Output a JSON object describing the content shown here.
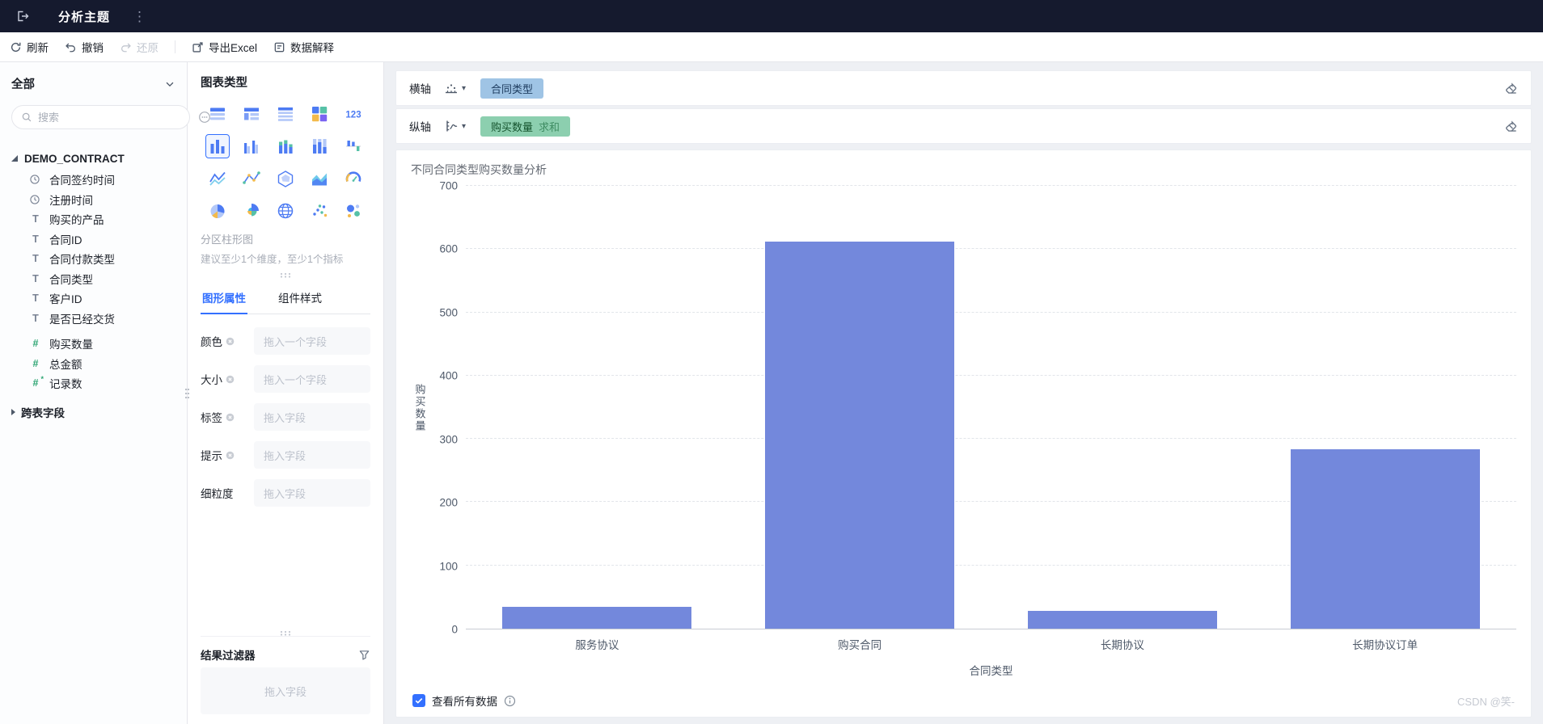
{
  "header": {
    "title": "分析主题"
  },
  "toolbar": {
    "refresh": "刷新",
    "undo": "撤销",
    "redo": "还原",
    "export_excel": "导出Excel",
    "data_explain": "数据解释"
  },
  "sidebar": {
    "filter_all": "全部",
    "search_placeholder": "搜索",
    "tree": {
      "table": "DEMO_CONTRACT",
      "fields": [
        {
          "name": "合同签约时间",
          "type": "date"
        },
        {
          "name": "注册时间",
          "type": "date"
        },
        {
          "name": "购买的产品",
          "type": "text"
        },
        {
          "name": "合同ID",
          "type": "text"
        },
        {
          "name": "合同付款类型",
          "type": "text"
        },
        {
          "name": "合同类型",
          "type": "text"
        },
        {
          "name": "客户ID",
          "type": "text"
        },
        {
          "name": "是否已经交货",
          "type": "text"
        },
        {
          "name": "购买数量",
          "type": "number",
          "group_start": true
        },
        {
          "name": "总金额",
          "type": "number"
        },
        {
          "name": "记录数",
          "type": "calc"
        }
      ],
      "cross_table_label": "跨表字段"
    }
  },
  "panel": {
    "chart_type_title": "图表类型",
    "chart_icons": [
      "group-table",
      "cross-table",
      "detail-table",
      "dashboard-blocks",
      "kpi-card",
      "partition-column",
      "grouped-column",
      "stacked-column",
      "percent-column",
      "bidirectional-bar",
      "line-chart",
      "combo-chart",
      "radar-chart",
      "area-chart",
      "gauge-chart",
      "pie-chart",
      "rose-chart",
      "map-chart",
      "scatter-chart",
      "bubble-chart"
    ],
    "selected_icon_index": 5,
    "selected_chart_name": "分区柱形图",
    "hint": "建议至少1个维度，至少1个指标",
    "tabs": [
      {
        "label": "图形属性",
        "active": true
      },
      {
        "label": "组件样式",
        "active": false
      }
    ],
    "properties": [
      {
        "label": "颜色",
        "placeholder": "拖入一个字段",
        "clearable": true
      },
      {
        "label": "大小",
        "placeholder": "拖入一个字段",
        "clearable": true
      },
      {
        "label": "标签",
        "placeholder": "拖入字段",
        "clearable": true
      },
      {
        "label": "提示",
        "placeholder": "拖入字段",
        "clearable": true
      },
      {
        "label": "细粒度",
        "placeholder": "拖入字段",
        "clearable": false
      }
    ],
    "result_filter": {
      "title": "结果过滤器",
      "placeholder": "拖入字段"
    }
  },
  "canvas": {
    "x_axis_label": "横轴",
    "x_axis_pill": "合同类型",
    "y_axis_label": "纵轴",
    "y_axis_pill": "购买数量",
    "y_axis_pill_suffix": "求和",
    "footer_checkbox_label": "查看所有数据",
    "watermark": "CSDN @笑-"
  },
  "chart_data": {
    "type": "bar",
    "title": "不同合同类型购买数量分析",
    "categories": [
      "服务协议",
      "购买合同",
      "长期协议",
      "长期协议订单"
    ],
    "values": [
      35,
      612,
      28,
      283
    ],
    "xlabel": "合同类型",
    "ylabel": "购买数量",
    "ylim": [
      0,
      700
    ],
    "yticks": [
      0,
      100,
      200,
      300,
      400,
      500,
      600,
      700
    ],
    "bar_color": "#7388DC",
    "grid": "dashed-horizontal",
    "legend": "none"
  }
}
